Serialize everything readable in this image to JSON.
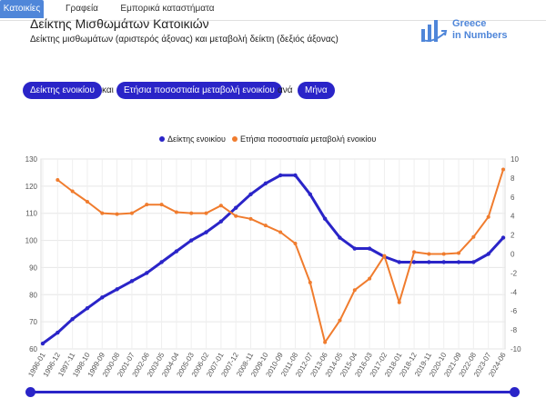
{
  "tabs": [
    "Κατοικίες",
    "Γραφεία",
    "Εμπορικά καταστήματα"
  ],
  "header": {
    "title": "Δείκτης Μισθωμάτων Κατοικιών",
    "subtitle": "Δείκτης μισθωμάτων (αριστερός άξονας) και μεταβολή δείκτη (δεξιός άξονας)",
    "logo_line1": "Greece",
    "logo_line2": "in Numbers"
  },
  "controls": {
    "series1": "Δείκτης ενοικίου",
    "and": "και",
    "series2": "Ετήσια ποσοστιαία μεταβολή ενοικίου",
    "per": "ανά",
    "period": "Μήνα"
  },
  "colors": {
    "index": "#2a24c8",
    "change": "#f07c2e",
    "accent": "#4f86d9"
  },
  "chart_data": {
    "type": "line",
    "x": [
      "1996-01",
      "1996-12",
      "1997-11",
      "1998-10",
      "1999-09",
      "2000-08",
      "2001-07",
      "2002-06",
      "2003-05",
      "2004-04",
      "2005-03",
      "2006-02",
      "2007-01",
      "2007-12",
      "2008-11",
      "2009-10",
      "2010-09",
      "2011-08",
      "2012-07",
      "2013-06",
      "2014-05",
      "2015-04",
      "2016-03",
      "2017-02",
      "2018-01",
      "2018-12",
      "2019-11",
      "2020-10",
      "2021-09",
      "2022-08",
      "2023-07",
      "2024-06"
    ],
    "x_ticks": [
      "1996-01",
      "1996-12",
      "1997-11",
      "1998-10",
      "1999-09",
      "2000-08",
      "2001-07",
      "2002-06",
      "2003-05",
      "2004-04",
      "2005-03",
      "2006-02",
      "2007-01",
      "2007-12",
      "2008-11",
      "2009-10",
      "2010-09",
      "2011-08",
      "2012-07",
      "2013-06",
      "2014-05",
      "2015-04",
      "2016-03",
      "2017-02",
      "2018-01",
      "2018-12",
      "2019-11",
      "2020-10",
      "2021-09",
      "2022-08",
      "2023-07",
      "2024-06"
    ],
    "series": [
      {
        "name": "Δείκτης ενοικίου",
        "axis": "left",
        "values": [
          62,
          66,
          71,
          75,
          79,
          82,
          85,
          88,
          92,
          96,
          100,
          103,
          107,
          112,
          117,
          121,
          124,
          124,
          117,
          108,
          101,
          97,
          97,
          94,
          92,
          92,
          92,
          92,
          92,
          92,
          95,
          101
        ]
      },
      {
        "name": "Ετήσια ποσοστιαία μεταβολή ενοικίου",
        "axis": "right",
        "values": [
          null,
          7.8,
          6.6,
          5.5,
          4.3,
          4.2,
          4.3,
          5.2,
          5.2,
          4.4,
          4.3,
          4.3,
          5.1,
          4.0,
          3.7,
          3.0,
          2.3,
          1.1,
          -3.0,
          -9.3,
          -7.0,
          -3.8,
          -2.6,
          -0.2,
          -5.1,
          0.2,
          0.0,
          0.0,
          0.1,
          1.8,
          3.9,
          8.9
        ]
      }
    ],
    "y_left": {
      "min": 60,
      "max": 130,
      "ticks": [
        60,
        70,
        80,
        90,
        100,
        110,
        120,
        130
      ]
    },
    "y_right": {
      "min": -10,
      "max": 10,
      "ticks": [
        -10,
        -8,
        -6,
        -4,
        -2,
        0,
        2,
        4,
        6,
        8,
        10
      ]
    },
    "grid": true,
    "legend_position": "top-center"
  }
}
